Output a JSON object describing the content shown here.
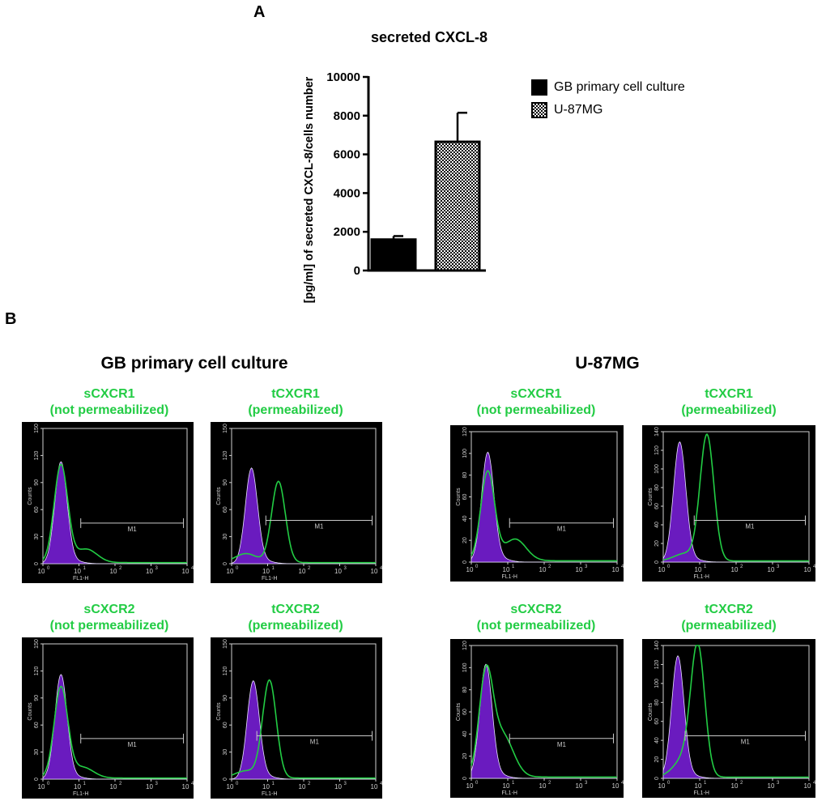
{
  "panels": {
    "a_label": "A",
    "b_label": "B"
  },
  "colors": {
    "green": "#22cc44",
    "purple": "#6a1bbf",
    "histogram_bg": "#000000",
    "gate": "#c8c8c8"
  },
  "chart_data": [
    {
      "type": "bar",
      "title": "secreted CXCL-8",
      "ylabel": "[pg/ml] of secreted CXCL-8/cells number",
      "xlabel": "",
      "ylim": [
        0,
        10000
      ],
      "yticks": [
        "0",
        "2000",
        "4000",
        "6000",
        "8000",
        "10000"
      ],
      "categories": [
        "GB primary cell culture",
        "U-87MG"
      ],
      "values": [
        1600,
        6650
      ],
      "errors": [
        180,
        1500
      ],
      "legend": [
        {
          "label": "GB primary cell culture",
          "pattern": "solid-black"
        },
        {
          "label": "U-87MG",
          "pattern": "checkered"
        }
      ],
      "legend_position": "right"
    },
    {
      "type": "area",
      "title": "Flow cytometry histograms",
      "x_scale": "log",
      "xlabel": "FL1-H",
      "ylabel": "Counts",
      "x_tick_labels": [
        "10",
        "10",
        "10",
        "10",
        "10"
      ],
      "x_tick_exponents": [
        "0",
        "1",
        "2",
        "3",
        "4"
      ],
      "gate_label": "M1",
      "groups": [
        {
          "title": "GB primary cell culture",
          "plots": [
            {
              "line1": "sCXCR1",
              "line2": "(not permeabilized)",
              "ymax": 150,
              "yticks": [
                "0",
                "30",
                "60",
                "90",
                "120",
                "150"
              ],
              "control_peak_log": 0.5,
              "control_peak": 112,
              "stain_peak_log": 0.5,
              "stain_peak": 108,
              "stain_shoulder_log": 1.2,
              "stain_shoulder": 15
            },
            {
              "line1": "tCXCR1",
              "line2": "(permeabilized)",
              "ymax": 150,
              "yticks": [
                "0",
                "30",
                "60",
                "90",
                "120",
                "150"
              ],
              "control_peak_log": 0.55,
              "control_peak": 105,
              "stain_peak_log": 1.3,
              "stain_peak": 90,
              "stain_shoulder_log": 0.4,
              "stain_shoulder": 10
            },
            {
              "line1": "sCXCR2",
              "line2": "(not permeabilized)",
              "ymax": 150,
              "yticks": [
                "0",
                "30",
                "60",
                "90",
                "120",
                "150"
              ],
              "control_peak_log": 0.5,
              "control_peak": 115,
              "stain_peak_log": 0.5,
              "stain_peak": 100,
              "stain_shoulder_log": 1.1,
              "stain_shoulder": 12
            },
            {
              "line1": "tCXCR2",
              "line2": "(permeabilized)",
              "ymax": 150,
              "yticks": [
                "0",
                "30",
                "60",
                "90",
                "120",
                "150"
              ],
              "control_peak_log": 0.6,
              "control_peak": 108,
              "stain_peak_log": 1.05,
              "stain_peak": 108,
              "stain_shoulder_log": 0.4,
              "stain_shoulder": 8
            }
          ]
        },
        {
          "title": "U-87MG",
          "plots": [
            {
              "line1": "sCXCR1",
              "line2": "(not permeabilized)",
              "ymax": 120,
              "yticks": [
                "0",
                "20",
                "40",
                "60",
                "80",
                "100",
                "120"
              ],
              "control_peak_log": 0.45,
              "control_peak": 100,
              "stain_peak_log": 0.45,
              "stain_peak": 82,
              "stain_shoulder_log": 1.2,
              "stain_shoulder": 20
            },
            {
              "line1": "tCXCR1",
              "line2": "(permeabilized)",
              "ymax": 140,
              "yticks": [
                "0",
                "20",
                "40",
                "60",
                "80",
                "100",
                "120",
                "140"
              ],
              "control_peak_log": 0.45,
              "control_peak": 128,
              "stain_peak_log": 1.2,
              "stain_peak": 135,
              "stain_shoulder_log": 0.6,
              "stain_shoulder": 8
            },
            {
              "line1": "sCXCR2",
              "line2": "(not permeabilized)",
              "ymax": 120,
              "yticks": [
                "0",
                "20",
                "40",
                "60",
                "80",
                "100",
                "120"
              ],
              "control_peak_log": 0.4,
              "control_peak": 102,
              "stain_peak_log": 0.4,
              "stain_peak": 88,
              "stain_shoulder_log": 0.85,
              "stain_shoulder": 38
            },
            {
              "line1": "tCXCR2",
              "line2": "(permeabilized)",
              "ymax": 140,
              "yticks": [
                "0",
                "20",
                "40",
                "60",
                "80",
                "100",
                "120",
                "140"
              ],
              "control_peak_log": 0.4,
              "control_peak": 128,
              "stain_peak_log": 0.95,
              "stain_peak": 132,
              "stain_shoulder_log": 0.6,
              "stain_shoulder": 20
            }
          ]
        }
      ]
    }
  ]
}
